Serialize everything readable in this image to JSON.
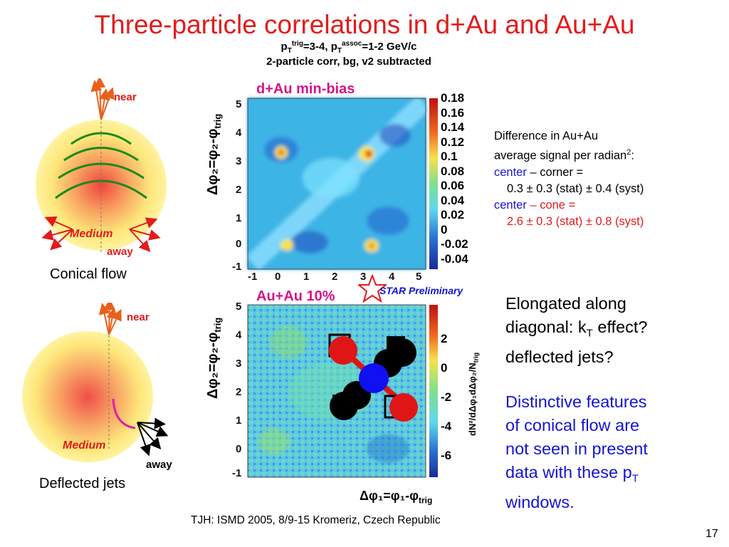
{
  "slide": {
    "title": "Three-particle correlations in d+Au and Au+Au",
    "subtitle_line1_pre": "p",
    "subtitle_line1_sub1": "T",
    "subtitle_line1_sup1": "trig",
    "subtitle_line1_mid": "=3-4, p",
    "subtitle_line1_sub2": "T",
    "subtitle_line1_sup2": "assoc",
    "subtitle_line1_post": "=1-2 GeV/c",
    "subtitle_line2": "2-particle corr, bg, v2 subtracted",
    "footer": "TJH: ISMD 2005, 8/9-15 Kromeriz, Czech Republic",
    "page_number": "17"
  },
  "left_diagrams": {
    "near_label": "near",
    "away_label": "away",
    "medium_label": "Medium",
    "conical_caption": "Conical flow",
    "deflected_caption": "Deflected jets"
  },
  "plots": {
    "dau_title": "d+Au min-bias",
    "auau_title": "Au+Au 10%",
    "preliminary": "STAR Preliminary",
    "yaxis_label": "Δφ₂=φ₂-φ",
    "yaxis_sub": "trig",
    "xaxis_label": "Δφ₁=φ₁-φ",
    "xaxis_sub": "trig",
    "zaxis_label": "dN²/dΔφ₁dΔφ₂/N",
    "zaxis_sub": "trig",
    "axis_ticks": [
      "-1",
      "0",
      "1",
      "2",
      "3",
      "4",
      "5"
    ],
    "dau_colorbar_ticks": [
      "0.18",
      "0.16",
      "0.14",
      "0.12",
      "0.1",
      "0.08",
      "0.06",
      "0.04",
      "0.02",
      "0",
      "-0.02",
      "-0.04"
    ],
    "auau_colorbar_ticks": [
      "2",
      "0",
      "-2",
      "-4",
      "-6"
    ]
  },
  "right_text": {
    "diff_line1": "Difference in Au+Au",
    "diff_line2_pre": "average signal per radian",
    "diff_line2_sup": "2",
    "diff_line2_post": ":",
    "diff_center1": "center",
    "diff_corner": " – corner =",
    "diff_value1": "0.3 ± 0.3 (stat) ± 0.4 (syst)",
    "diff_center2": "center",
    "diff_cone": " – cone =",
    "diff_value2": "2.6 ± 0.3 (stat) ± 0.8 (syst)",
    "elongated_line1": "Elongated along",
    "elongated_line2_pre": "diagonal: k",
    "elongated_line2_sub": "T",
    "elongated_line2_post": " effect?",
    "elongated_line3": "deflected jets?",
    "distinctive_line1": "Distinctive features",
    "distinctive_line2": "of conical flow are",
    "distinctive_line3": "not seen in present",
    "distinctive_line4_pre": "data with these p",
    "distinctive_line4_sub": "T",
    "distinctive_line5": "windows."
  },
  "colors": {
    "title_red": "#e31b1b",
    "text_blue": "#1414d2",
    "label_magenta": "#d4148a",
    "medium_yellow": "#fff27a",
    "medium_core": "#f2564a"
  }
}
